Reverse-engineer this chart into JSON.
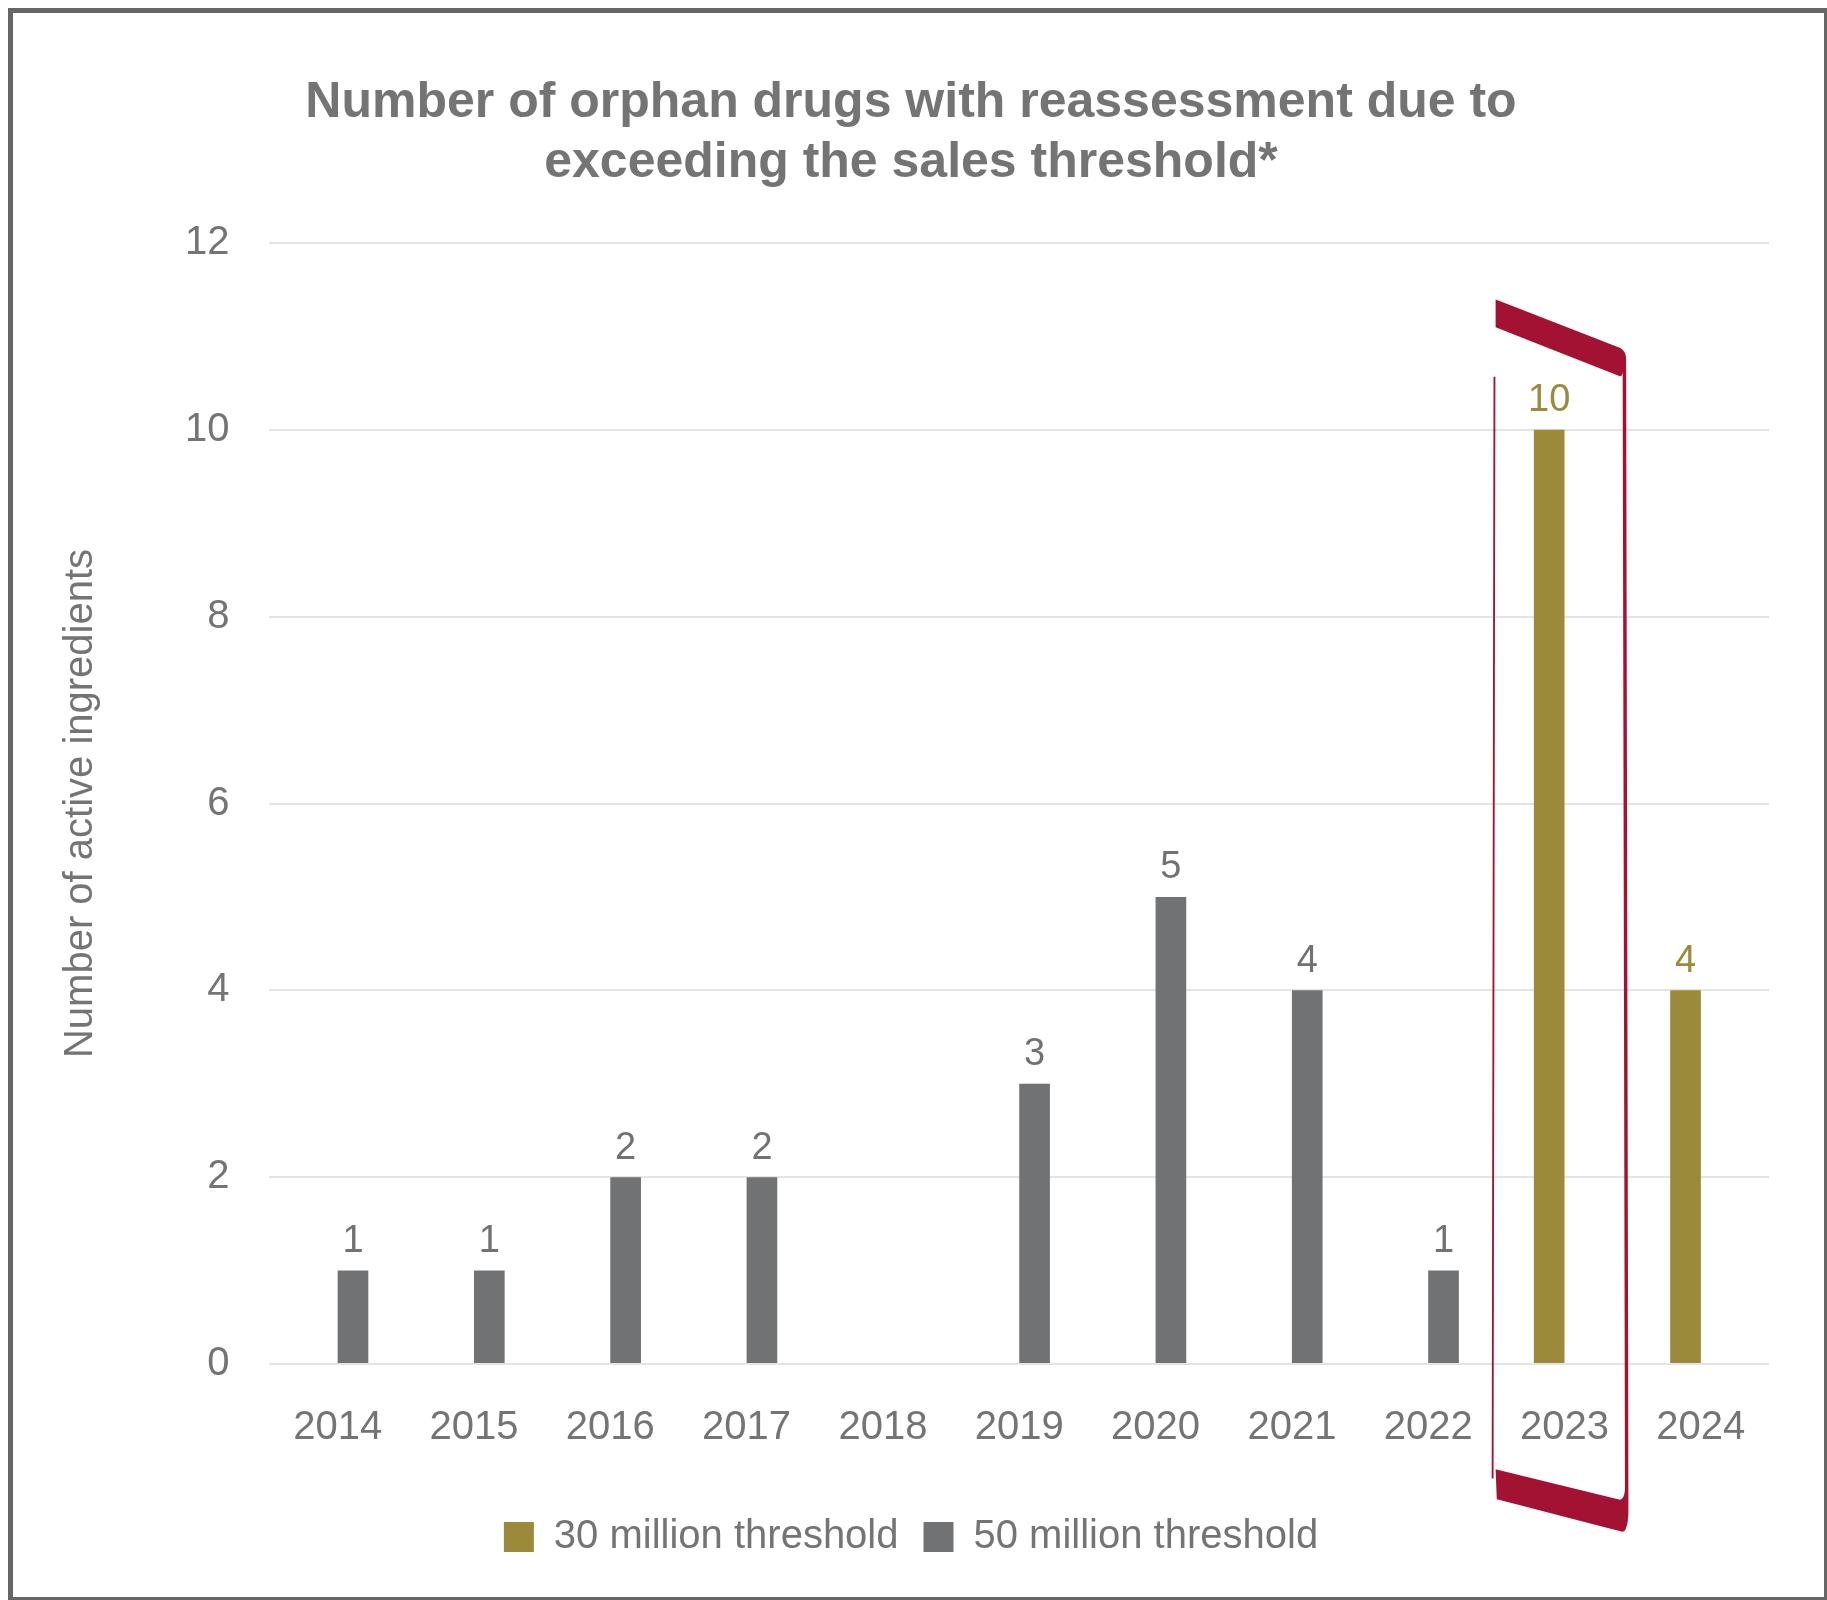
{
  "chart_data": {
    "type": "bar",
    "title": "Number of orphan drugs with reassessment due to exceeding the sales threshold*",
    "ylabel": "Number of active ingredients",
    "categories": [
      "2014",
      "2015",
      "2016",
      "2017",
      "2018",
      "2019",
      "2020",
      "2021",
      "2022",
      "2023",
      "2024"
    ],
    "series": [
      {
        "name": "30 million threshold",
        "color": "#9a8a3a",
        "values": [
          null,
          null,
          null,
          null,
          null,
          null,
          null,
          null,
          null,
          10,
          4
        ]
      },
      {
        "name": "50 million threshold",
        "color": "#717274",
        "values": [
          1,
          1,
          2,
          2,
          null,
          3,
          5,
          4,
          1,
          null,
          null
        ]
      }
    ],
    "ylim": [
      0,
      12
    ],
    "yticks": [
      0,
      2,
      4,
      6,
      8,
      10,
      12
    ],
    "grid": "y",
    "legend": "bottom",
    "data_labels": true
  }
}
